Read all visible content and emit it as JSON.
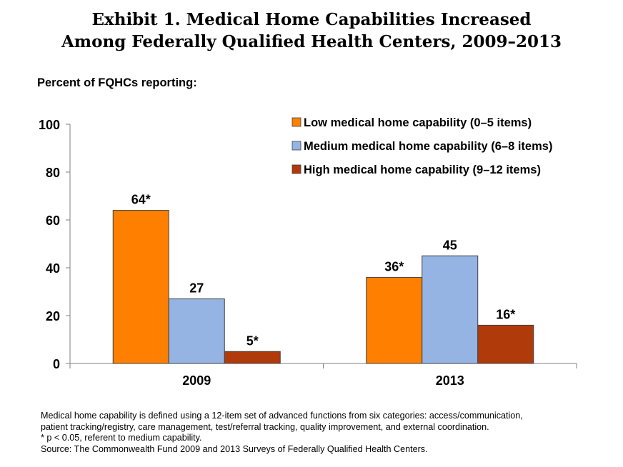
{
  "title_lines": [
    "Exhibit 1. Medical Home Capabilities Increased",
    "Among Federally Qualified Health Centers, 2009–2013"
  ],
  "y_title": "Percent of FQHCs reporting:",
  "footnotes": [
    "Medical home capability is defined using a 12-item set of advanced functions from six categories: access/communication,",
    "patient tracking/registry, care management, test/referral tracking, quality improvement, and external coordination.",
    "* p < 0.05, referent to medium capability.",
    "Source:  The Commonwealth Fund 2009 and 2013 Surveys of Federally Qualified Health Centers."
  ],
  "chart_data": {
    "type": "bar",
    "title": "Exhibit 1. Medical Home Capabilities Increased Among Federally Qualified Health Centers, 2009–2013",
    "xlabel": "",
    "ylabel": "Percent of FQHCs reporting:",
    "ylim": [
      0,
      100
    ],
    "yticks": [
      "0",
      "20",
      "40",
      "60",
      "80",
      "100"
    ],
    "categories": [
      "2009",
      "2013"
    ],
    "legend_position": "top-right",
    "grid": false,
    "series": [
      {
        "name": "Low medical home capability (0–5 items)",
        "color": "#FF7F00",
        "values": [
          64,
          36
        ],
        "labels": [
          "64*",
          "36*"
        ]
      },
      {
        "name": "Medium medical home capability (6–8 items)",
        "color": "#95B3E3",
        "values": [
          27,
          45
        ],
        "labels": [
          "27",
          "45"
        ]
      },
      {
        "name": "High medical home capability (9–12 items)",
        "color": "#B03A0A",
        "values": [
          5,
          16
        ],
        "labels": [
          "5*",
          "16*"
        ]
      }
    ]
  }
}
